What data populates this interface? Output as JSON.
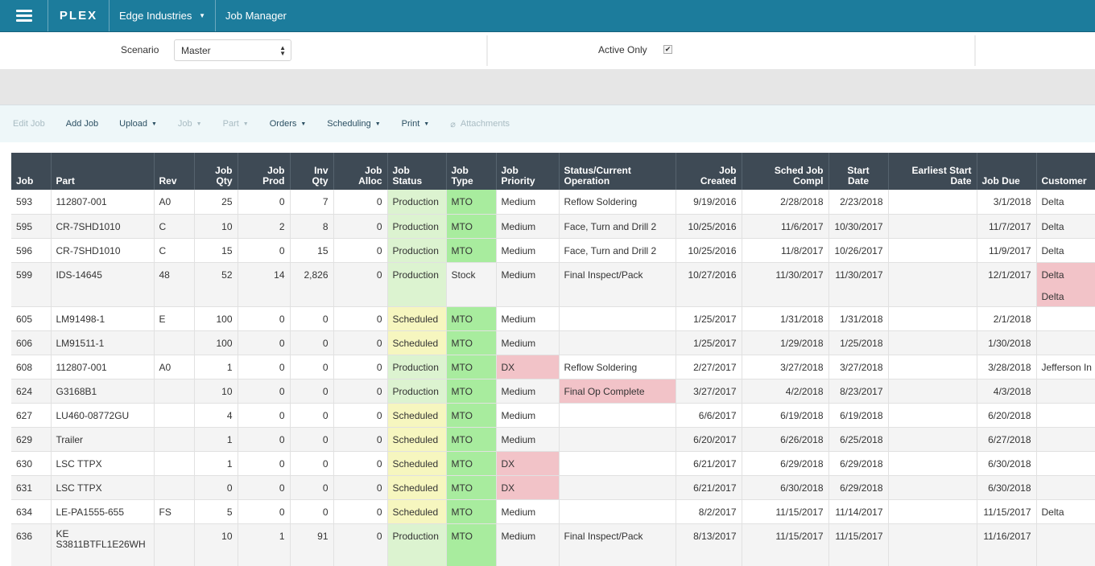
{
  "topbar": {
    "logo": "PLEX",
    "company": "Edge Industries",
    "app_name": "Job Manager"
  },
  "filters": {
    "scenario_label": "Scenario",
    "scenario_value": "Master",
    "active_only_label": "Active Only",
    "active_only_checked": "✔"
  },
  "actions": {
    "edit_job": "Edit Job",
    "add_job": "Add Job",
    "upload": "Upload",
    "job": "Job",
    "part": "Part",
    "orders": "Orders",
    "scheduling": "Scheduling",
    "print": "Print",
    "attachments": "Attachments"
  },
  "table": {
    "headers": {
      "job": "Job",
      "part": "Part",
      "rev": "Rev",
      "job_qty": [
        "Job",
        "Qty"
      ],
      "job_prod": [
        "Job",
        "Prod"
      ],
      "inv_qty": [
        "Inv",
        "Qty"
      ],
      "job_alloc": [
        "Job",
        "Alloc"
      ],
      "job_status": [
        "Job",
        "Status"
      ],
      "job_type": [
        "Job",
        "Type"
      ],
      "job_priority": [
        "Job",
        "Priority"
      ],
      "status_op": [
        "Status/Current",
        "Operation"
      ],
      "job_created": [
        "Job",
        "Created"
      ],
      "sched_compl": [
        "Sched Job",
        "Compl"
      ],
      "start_date": [
        "Start",
        "Date"
      ],
      "earliest_start": [
        "Earliest Start",
        "Date"
      ],
      "job_due": "Job Due",
      "customer": "Customer"
    },
    "rows": [
      {
        "job": "593",
        "part": "112807-001",
        "rev": "A0",
        "qty": "25",
        "prod": "0",
        "inv": "7",
        "alloc": "0",
        "status": "Production",
        "type": "MTO",
        "priority": "Medium",
        "op": "Reflow Soldering",
        "created": "9/19/2016",
        "compl": "2/28/2018",
        "start": "2/23/2018",
        "earliest": "",
        "due": "3/1/2018",
        "customer": "Delta"
      },
      {
        "job": "595",
        "part": "CR-7SHD1010",
        "rev": "C",
        "qty": "10",
        "prod": "2",
        "inv": "8",
        "alloc": "0",
        "status": "Production",
        "type": "MTO",
        "priority": "Medium",
        "op": "Face, Turn and Drill 2",
        "created": "10/25/2016",
        "compl": "11/6/2017",
        "start": "10/30/2017",
        "earliest": "",
        "due": "11/7/2017",
        "customer": "Delta"
      },
      {
        "job": "596",
        "part": "CR-7SHD1010",
        "rev": "C",
        "qty": "15",
        "prod": "0",
        "inv": "15",
        "alloc": "0",
        "status": "Production",
        "type": "MTO",
        "priority": "Medium",
        "op": "Face, Turn and Drill 2",
        "created": "10/25/2016",
        "compl": "11/8/2017",
        "start": "10/26/2017",
        "earliest": "",
        "due": "11/9/2017",
        "customer": "Delta"
      },
      {
        "job": "599",
        "part": "IDS-14645",
        "rev": "48",
        "qty": "52",
        "prod": "14",
        "inv": "2,826",
        "alloc": "0",
        "status": "Production",
        "type": "Stock",
        "priority": "Medium",
        "op": "Final Inspect/Pack",
        "created": "10/27/2016",
        "compl": "11/30/2017",
        "start": "11/30/2017",
        "earliest": "",
        "due": "12/1/2017",
        "customer": "Delta",
        "customer2": "Delta"
      },
      {
        "job": "605",
        "part": "LM91498-1",
        "rev": "E",
        "qty": "100",
        "prod": "0",
        "inv": "0",
        "alloc": "0",
        "status": "Scheduled",
        "type": "MTO",
        "priority": "Medium",
        "op": "",
        "created": "1/25/2017",
        "compl": "1/31/2018",
        "start": "1/31/2018",
        "earliest": "",
        "due": "2/1/2018",
        "customer": ""
      },
      {
        "job": "606",
        "part": "LM91511-1",
        "rev": "",
        "qty": "100",
        "prod": "0",
        "inv": "0",
        "alloc": "0",
        "status": "Scheduled",
        "type": "MTO",
        "priority": "Medium",
        "op": "",
        "created": "1/25/2017",
        "compl": "1/29/2018",
        "start": "1/25/2018",
        "earliest": "",
        "due": "1/30/2018",
        "customer": ""
      },
      {
        "job": "608",
        "part": "112807-001",
        "rev": "A0",
        "qty": "1",
        "prod": "0",
        "inv": "0",
        "alloc": "0",
        "status": "Production",
        "type": "MTO",
        "priority": "DX",
        "op": "Reflow Soldering",
        "created": "2/27/2017",
        "compl": "3/27/2018",
        "start": "3/27/2018",
        "earliest": "",
        "due": "3/28/2018",
        "customer": "Jefferson In"
      },
      {
        "job": "624",
        "part": "G3168B1",
        "rev": "",
        "qty": "10",
        "prod": "0",
        "inv": "0",
        "alloc": "0",
        "status": "Production",
        "type": "MTO",
        "priority": "Medium",
        "op": "Final Op Complete",
        "created": "3/27/2017",
        "compl": "4/2/2018",
        "start": "8/23/2017",
        "earliest": "",
        "due": "4/3/2018",
        "customer": ""
      },
      {
        "job": "627",
        "part": "LU460-08772GU",
        "rev": "",
        "qty": "4",
        "prod": "0",
        "inv": "0",
        "alloc": "0",
        "status": "Scheduled",
        "type": "MTO",
        "priority": "Medium",
        "op": "",
        "created": "6/6/2017",
        "compl": "6/19/2018",
        "start": "6/19/2018",
        "earliest": "",
        "due": "6/20/2018",
        "customer": ""
      },
      {
        "job": "629",
        "part": "Trailer",
        "rev": "",
        "qty": "1",
        "prod": "0",
        "inv": "0",
        "alloc": "0",
        "status": "Scheduled",
        "type": "MTO",
        "priority": "Medium",
        "op": "",
        "created": "6/20/2017",
        "compl": "6/26/2018",
        "start": "6/25/2018",
        "earliest": "",
        "due": "6/27/2018",
        "customer": ""
      },
      {
        "job": "630",
        "part": "LSC TTPX",
        "rev": "",
        "qty": "1",
        "prod": "0",
        "inv": "0",
        "alloc": "0",
        "status": "Scheduled",
        "type": "MTO",
        "priority": "DX",
        "op": "",
        "created": "6/21/2017",
        "compl": "6/29/2018",
        "start": "6/29/2018",
        "earliest": "",
        "due": "6/30/2018",
        "customer": ""
      },
      {
        "job": "631",
        "part": "LSC TTPX",
        "rev": "",
        "qty": "0",
        "prod": "0",
        "inv": "0",
        "alloc": "0",
        "status": "Scheduled",
        "type": "MTO",
        "priority": "DX",
        "op": "",
        "created": "6/21/2017",
        "compl": "6/30/2018",
        "start": "6/29/2018",
        "earliest": "",
        "due": "6/30/2018",
        "customer": ""
      },
      {
        "job": "634",
        "part": "LE-PA1555-655",
        "rev": "FS",
        "qty": "5",
        "prod": "0",
        "inv": "0",
        "alloc": "0",
        "status": "Scheduled",
        "type": "MTO",
        "priority": "Medium",
        "op": "",
        "created": "8/2/2017",
        "compl": "11/15/2017",
        "start": "11/14/2017",
        "earliest": "",
        "due": "11/15/2017",
        "customer": "Delta"
      },
      {
        "job": "636",
        "part": "KE S3811BTFL1E26WH",
        "rev": "",
        "qty": "10",
        "prod": "1",
        "inv": "91",
        "alloc": "0",
        "status": "Production",
        "type": "MTO",
        "priority": "Medium",
        "op": "Final Inspect/Pack",
        "created": "8/13/2017",
        "compl": "11/15/2017",
        "start": "11/15/2017",
        "earliest": "",
        "due": "11/16/2017",
        "customer": ""
      }
    ]
  }
}
